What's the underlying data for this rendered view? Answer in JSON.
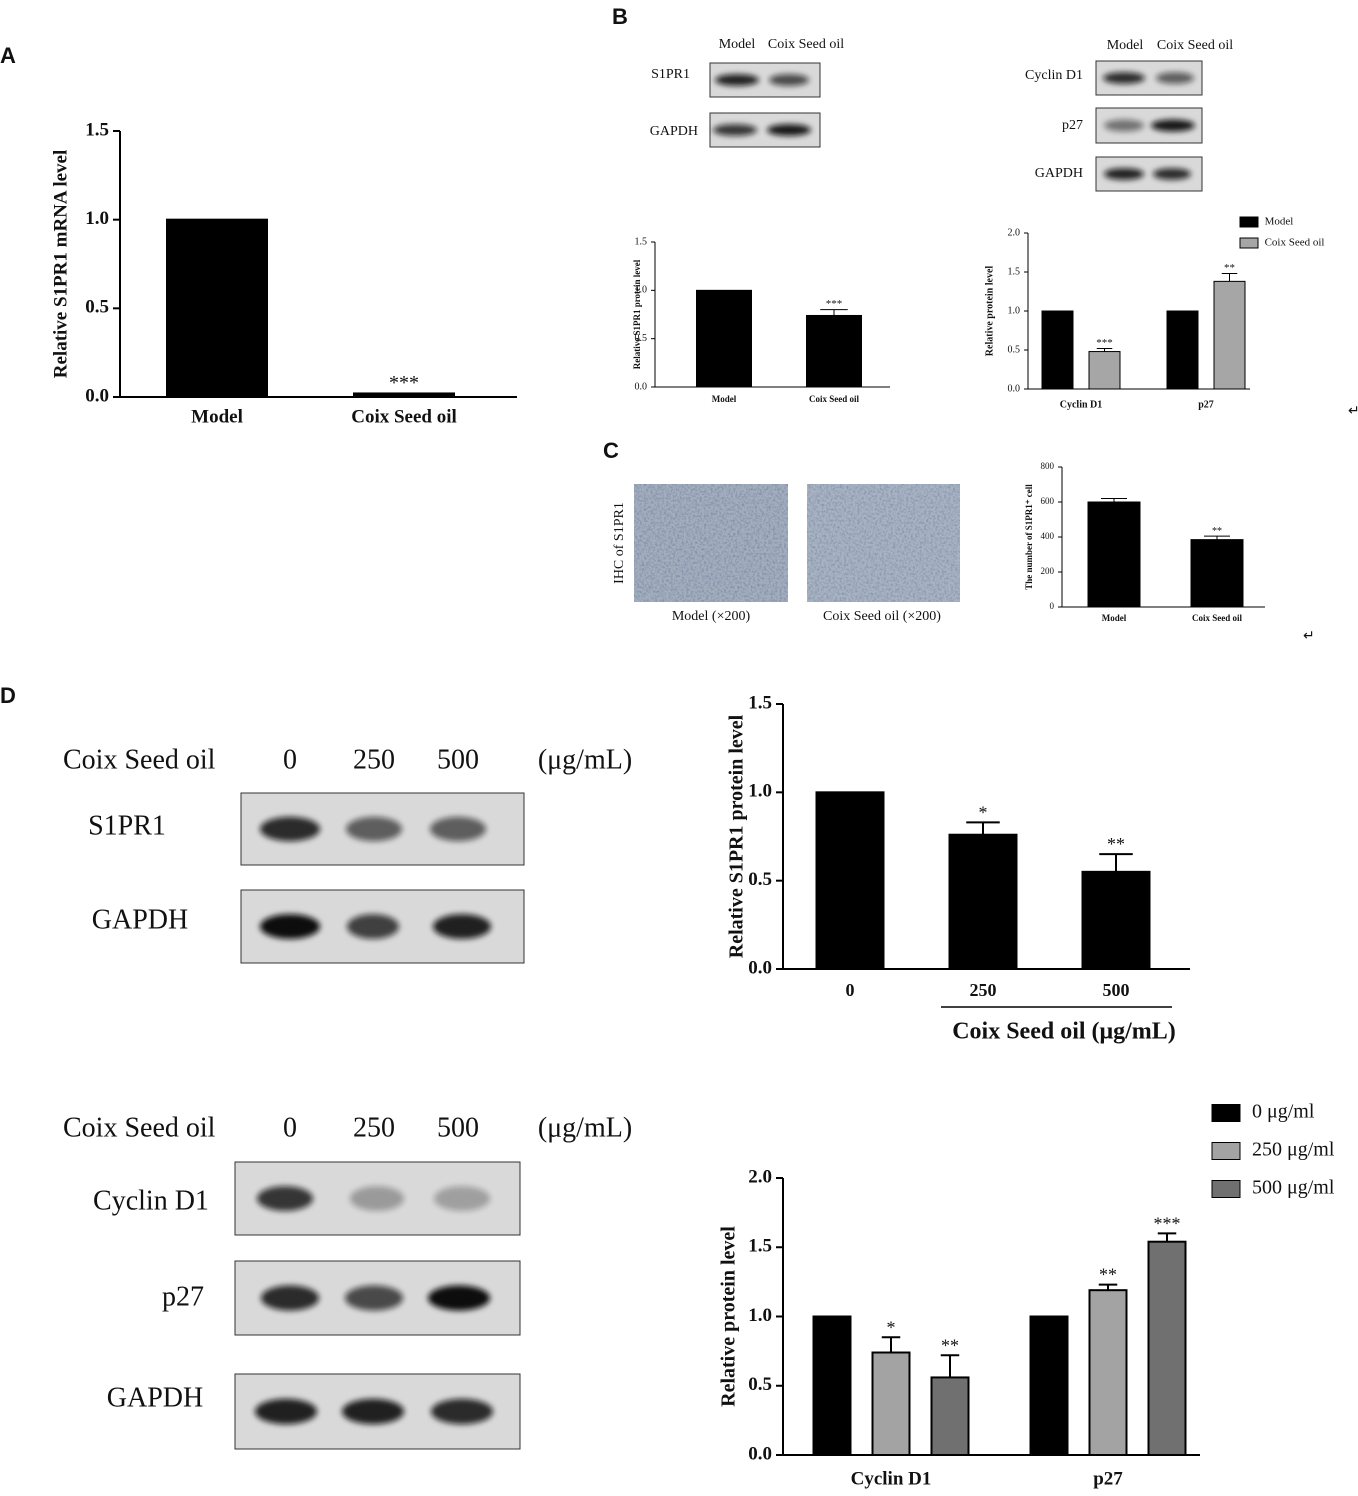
{
  "panel_labels": [
    "A",
    "B",
    "C",
    "D"
  ],
  "blots": [
    {
      "header": [
        "Model",
        "Coix Seed oil"
      ],
      "rows": [
        "S1PR1",
        "GAPDH"
      ]
    },
    {
      "header": [
        "Model",
        "Coix Seed oil"
      ],
      "rows": [
        "Cyclin D1",
        "p27",
        "GAPDH"
      ]
    },
    {
      "header": [
        "Coix Seed oil",
        "0",
        "250",
        "500",
        "(μg/mL)"
      ],
      "rows": [
        "S1PR1",
        "GAPDH"
      ]
    },
    {
      "header": [
        "Coix Seed oil",
        "0",
        "250",
        "500",
        "(μg/mL)"
      ],
      "rows": [
        "Cyclin D1",
        "p27",
        "GAPDH"
      ]
    }
  ],
  "ihc": {
    "ylabel": "IHC of S1PR1",
    "captions": [
      "Model (×200)",
      "Coix Seed oil (×200)"
    ]
  },
  "return_marks": [
    "↵",
    "↵"
  ],
  "chart_data": [
    {
      "type": "bar",
      "ylabel": "Relative S1PR1 mRNA level",
      "categories": [
        "Model",
        "Coix Seed oil"
      ],
      "values": [
        1.0,
        0.02
      ],
      "annotations": [
        null,
        "***"
      ],
      "color": "#000000",
      "ylim": [
        0,
        1.5
      ],
      "yticks": [
        {
          "value": 0,
          "label": "0.0"
        },
        {
          "value": 0.5,
          "label": "0.5"
        },
        {
          "value": 1,
          "label": "1.0"
        },
        {
          "value": 1.5,
          "label": "1.5"
        }
      ]
    },
    {
      "type": "bar",
      "ylabel": "Relative S1PR1 protein level",
      "categories": [
        "Model",
        "Coix Seed oil"
      ],
      "values": [
        1.0,
        0.74
      ],
      "errors": [
        null,
        0.06
      ],
      "annotations": [
        null,
        "***"
      ],
      "color": "#000000",
      "ylim": [
        0,
        1.5
      ],
      "yticks": [
        {
          "value": 0,
          "label": "0.0"
        },
        {
          "value": 0.5,
          "label": "0.5"
        },
        {
          "value": 1,
          "label": "1.0"
        },
        {
          "value": 1.5,
          "label": "1.5"
        }
      ]
    },
    {
      "type": "grouped_bar",
      "ylabel": "Relative protein level",
      "categories": [
        "Cyclin D1",
        "p27"
      ],
      "series": [
        {
          "name": "Model",
          "color": "#000000",
          "values": [
            1.0,
            1.0
          ],
          "errors": [
            null,
            null
          ],
          "annotations": [
            null,
            null
          ]
        },
        {
          "name": "Coix Seed oil",
          "color": "#a6a6a6",
          "values": [
            0.48,
            1.38
          ],
          "errors": [
            0.04,
            0.1
          ],
          "annotations": [
            "***",
            "**"
          ]
        }
      ],
      "ylim": [
        0,
        2
      ],
      "yticks": [
        {
          "value": 0,
          "label": "0.0"
        },
        {
          "value": 0.5,
          "label": "0.5"
        },
        {
          "value": 1,
          "label": "1.0"
        },
        {
          "value": 1.5,
          "label": "1.5"
        },
        {
          "value": 2,
          "label": "2.0"
        }
      ],
      "legend": "top-right"
    },
    {
      "type": "bar",
      "ylabel": "The number of S1PR1⁺ cell",
      "categories": [
        "Model",
        "Coix Seed oil"
      ],
      "values": [
        600,
        385
      ],
      "errors": [
        20,
        20
      ],
      "annotations": [
        null,
        "**"
      ],
      "color": "#000000",
      "ylim": [
        0,
        800
      ],
      "yticks": [
        0,
        200,
        400,
        600,
        800
      ]
    },
    {
      "type": "bar",
      "ylabel": "Relative S1PR1 protein level",
      "xlabel": "Coix Seed oil (μg/mL)",
      "categories": [
        "0",
        "250",
        "500"
      ],
      "values": [
        1.0,
        0.76,
        0.55
      ],
      "errors": [
        null,
        0.07,
        0.1
      ],
      "annotations": [
        null,
        "*",
        "**"
      ],
      "color": "#000000",
      "ylim": [
        0,
        1.5
      ],
      "yticks": [
        {
          "value": 0,
          "label": "0.0"
        },
        {
          "value": 0.5,
          "label": "0.5"
        },
        {
          "value": 1,
          "label": "1.0"
        },
        {
          "value": 1.5,
          "label": "1.5"
        }
      ]
    },
    {
      "type": "grouped_bar",
      "ylabel": "Relative protein level",
      "categories": [
        "Cyclin D1",
        "p27"
      ],
      "series": [
        {
          "name": "0 μg/ml",
          "color": "#000000",
          "values": [
            1.0,
            1.0
          ],
          "errors": [
            null,
            null
          ],
          "annotations": [
            null,
            null
          ]
        },
        {
          "name": "250 μg/ml",
          "color": "#a3a3a3",
          "values": [
            0.74,
            1.19
          ],
          "errors": [
            0.11,
            0.04
          ],
          "annotations": [
            "*",
            "**"
          ]
        },
        {
          "name": "500 μg/ml",
          "color": "#707070",
          "values": [
            0.56,
            1.54
          ],
          "errors": [
            0.16,
            0.06
          ],
          "annotations": [
            "**",
            "***"
          ]
        }
      ],
      "ylim": [
        0,
        2
      ],
      "yticks": [
        {
          "value": 0,
          "label": "0.0"
        },
        {
          "value": 0.5,
          "label": "0.5"
        },
        {
          "value": 1,
          "label": "1.0"
        },
        {
          "value": 1.5,
          "label": "1.5"
        },
        {
          "value": 2,
          "label": "2.0"
        }
      ],
      "legend": "top-right"
    }
  ]
}
